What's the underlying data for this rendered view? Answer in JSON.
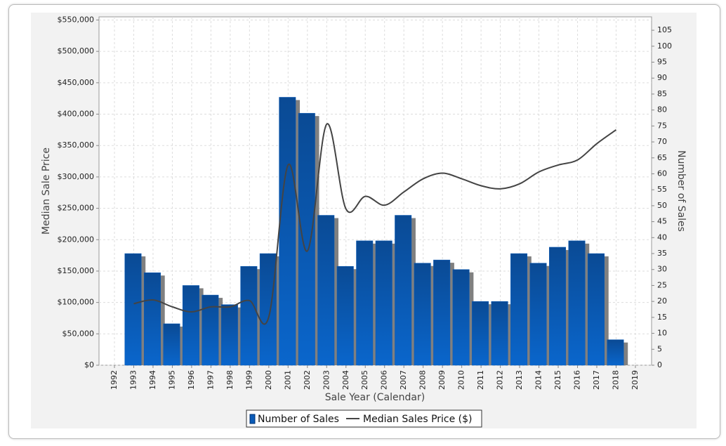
{
  "chart_data": {
    "type": "bar-line",
    "categories": [
      "1992",
      "1993",
      "1994",
      "1995",
      "1996",
      "1997",
      "1998",
      "1999",
      "2000",
      "2001",
      "2002",
      "2003",
      "2004",
      "2005",
      "2006",
      "2007",
      "2008",
      "2009",
      "2010",
      "2011",
      "2012",
      "2013",
      "2014",
      "2015",
      "2016",
      "2017",
      "2018",
      "2019"
    ],
    "series": [
      {
        "name": "Number of Sales",
        "type": "bar",
        "axis": "y2",
        "color": "#0a5bb8",
        "values": [
          null,
          35,
          29,
          13,
          25,
          22,
          19,
          31,
          35,
          84,
          79,
          47,
          31,
          39,
          39,
          47,
          32,
          33,
          30,
          20,
          20,
          35,
          32,
          37,
          39,
          35,
          8,
          null
        ]
      },
      {
        "name": "Median Sales Price ($)",
        "type": "line",
        "axis": "y",
        "color": "#444444",
        "values": [
          null,
          98000,
          104000,
          93000,
          85000,
          93000,
          93000,
          103000,
          77000,
          319000,
          182000,
          384000,
          249000,
          269000,
          255000,
          276000,
          297000,
          306000,
          297000,
          286000,
          281000,
          289000,
          308000,
          319000,
          327000,
          353000,
          375000,
          null
        ]
      }
    ],
    "xlabel": "Sale Year (Calendar)",
    "ylabel": "Median Sale Price",
    "y2label": "Number of Sales",
    "ylim": [
      0,
      555000
    ],
    "yticks": [
      {
        "value": 0,
        "label": "$0"
      },
      {
        "value": 50000,
        "label": "$50,000"
      },
      {
        "value": 100000,
        "label": "$100,000"
      },
      {
        "value": 150000,
        "label": "$150,000"
      },
      {
        "value": 200000,
        "label": "$200,000"
      },
      {
        "value": 250000,
        "label": "$250,000"
      },
      {
        "value": 300000,
        "label": "$300,000"
      },
      {
        "value": 350000,
        "label": "$350,000"
      },
      {
        "value": 400000,
        "label": "$400,000"
      },
      {
        "value": 450000,
        "label": "$450,000"
      },
      {
        "value": 500000,
        "label": "$500,000"
      },
      {
        "value": 550000,
        "label": "$550,000"
      }
    ],
    "y2lim": [
      0,
      109.2
    ],
    "y2ticks": [
      0,
      5,
      10,
      15,
      20,
      25,
      30,
      35,
      40,
      45,
      50,
      55,
      60,
      65,
      70,
      75,
      80,
      85,
      90,
      95,
      100,
      105
    ],
    "grid": true,
    "legend": "bottom"
  }
}
